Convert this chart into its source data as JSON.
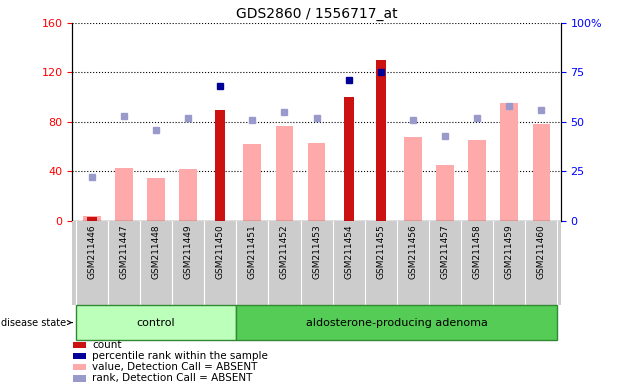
{
  "title": "GDS2860 / 1556717_at",
  "samples": [
    "GSM211446",
    "GSM211447",
    "GSM211448",
    "GSM211449",
    "GSM211450",
    "GSM211451",
    "GSM211452",
    "GSM211453",
    "GSM211454",
    "GSM211455",
    "GSM211456",
    "GSM211457",
    "GSM211458",
    "GSM211459",
    "GSM211460"
  ],
  "control_count": 5,
  "adenoma_count": 10,
  "count_values": [
    3,
    0,
    0,
    0,
    90,
    0,
    0,
    0,
    100,
    130,
    0,
    0,
    0,
    0,
    0
  ],
  "percentile_rank_values": [
    null,
    null,
    null,
    null,
    68,
    null,
    null,
    null,
    71,
    75,
    null,
    null,
    null,
    null,
    null
  ],
  "value_absent": [
    4,
    43,
    35,
    42,
    null,
    62,
    77,
    63,
    null,
    null,
    68,
    45,
    65,
    95,
    78
  ],
  "rank_absent": [
    22,
    53,
    46,
    52,
    null,
    51,
    55,
    52,
    null,
    null,
    51,
    43,
    52,
    58,
    56
  ],
  "ylim_left": [
    0,
    160
  ],
  "ylim_right": [
    0,
    100
  ],
  "left_ticks": [
    0,
    40,
    80,
    120,
    160
  ],
  "right_ticks": [
    0,
    25,
    50,
    75,
    100
  ],
  "right_tick_labels": [
    "0",
    "25",
    "50",
    "75",
    "100%"
  ],
  "bar_color_count": "#cc1111",
  "bar_color_absent": "#ffaaaa",
  "dot_color_percentile": "#000099",
  "dot_color_rank_absent": "#9999cc",
  "control_bg": "#bbffbb",
  "adenoma_bg": "#55cc55",
  "label_region_bg": "#cccccc",
  "disease_state_label": "disease state",
  "control_label": "control",
  "adenoma_label": "aldosterone-producing adenoma",
  "legend_items": [
    {
      "label": "count",
      "color": "#cc1111"
    },
    {
      "label": "percentile rank within the sample",
      "color": "#000099"
    },
    {
      "label": "value, Detection Call = ABSENT",
      "color": "#ffaaaa"
    },
    {
      "label": "rank, Detection Call = ABSENT",
      "color": "#9999cc"
    }
  ]
}
